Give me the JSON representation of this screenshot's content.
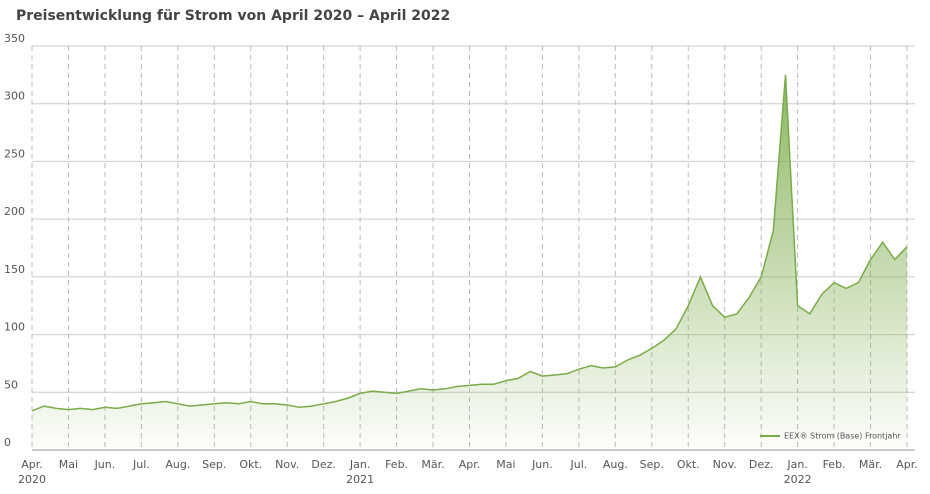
{
  "chart_data": {
    "type": "area",
    "title": "Preisentwicklung für Strom von April 2020 – April 2022",
    "categories": [
      "Apr.",
      null,
      null,
      "Mai",
      null,
      null,
      "Jun.",
      null,
      null,
      "Jul.",
      null,
      null,
      "Aug.",
      null,
      null,
      "Sep.",
      null,
      null,
      "Okt.",
      null,
      null,
      "Nov.",
      null,
      null,
      "Dez.",
      null,
      null,
      "Jan.",
      null,
      null,
      "Feb.",
      null,
      null,
      "Mär.",
      null,
      null,
      "Apr.",
      null,
      null,
      "Mai",
      null,
      null,
      "Jun.",
      null,
      null,
      "Jul.",
      null,
      null,
      "Aug.",
      null,
      null,
      "Sep.",
      null,
      null,
      "Okt.",
      null,
      null,
      "Nov.",
      null,
      null,
      "Dez.",
      null,
      null,
      "Jan.",
      null,
      null,
      "Feb.",
      null,
      null,
      "Mär.",
      null,
      null,
      "Apr."
    ],
    "year_labels": [
      "2020",
      null,
      null,
      null,
      null,
      null,
      null,
      null,
      null,
      null,
      null,
      null,
      null,
      null,
      null,
      null,
      null,
      null,
      null,
      null,
      null,
      null,
      null,
      null,
      null,
      null,
      null,
      "2021",
      null,
      null,
      null,
      null,
      null,
      null,
      null,
      null,
      null,
      null,
      null,
      null,
      null,
      null,
      null,
      null,
      null,
      null,
      null,
      null,
      null,
      null,
      null,
      null,
      null,
      null,
      null,
      null,
      null,
      null,
      null,
      null,
      null,
      null,
      null,
      "2022",
      null,
      null,
      null,
      null,
      null,
      null,
      null,
      null,
      null
    ],
    "series": [
      {
        "name": "EEX® Strom (Base) Frontjahr",
        "color": "#7aab48",
        "values": [
          34,
          38,
          36,
          35,
          36,
          35,
          37,
          36,
          38,
          40,
          41,
          42,
          40,
          38,
          39,
          40,
          41,
          40,
          42,
          40,
          40,
          39,
          37,
          38,
          40,
          42,
          45,
          49,
          51,
          50,
          49,
          51,
          53,
          52,
          53,
          55,
          56,
          57,
          57,
          60,
          62,
          68,
          64,
          65,
          66,
          70,
          73,
          71,
          72,
          78,
          82,
          88,
          95,
          105,
          125,
          150,
          125,
          115,
          118,
          132,
          150,
          190,
          325,
          125,
          118,
          135,
          145,
          140,
          145,
          165,
          180,
          165,
          176
        ]
      }
    ],
    "ylim": [
      0,
      350
    ],
    "yticks": [
      0,
      50,
      100,
      150,
      200,
      250,
      300,
      350
    ],
    "grid": true,
    "legend": "lower right"
  }
}
